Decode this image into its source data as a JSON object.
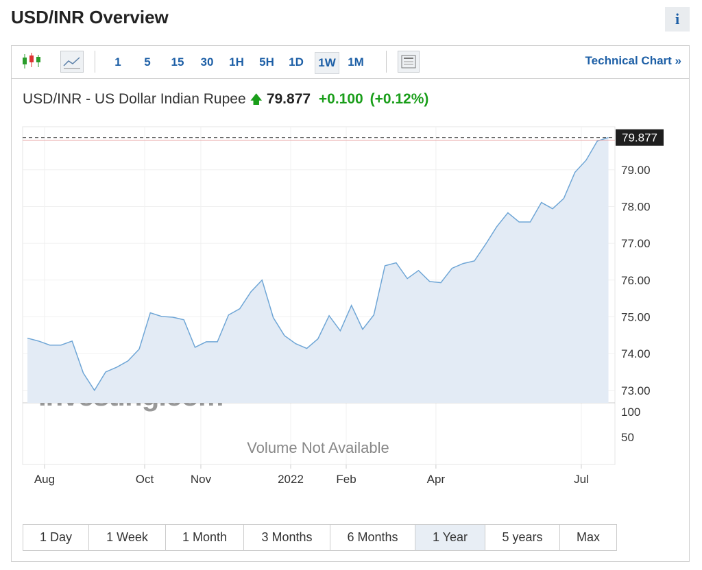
{
  "header": {
    "title": "USD/INR Overview",
    "info": "i"
  },
  "toolbar": {
    "intervals": [
      "1",
      "5",
      "15",
      "30",
      "1H",
      "5H",
      "1D",
      "1W",
      "1M"
    ],
    "active_interval": "1W",
    "technical_chart": "Technical Chart »"
  },
  "quote": {
    "name": "USD/INR - US Dollar Indian Rupee",
    "price": "79.877",
    "change": "+0.100",
    "change_percent": "(+0.12%)"
  },
  "chart_data": {
    "type": "area",
    "color": "#6fa6d6",
    "fill": "#e3ebf5",
    "grid": true,
    "values": [
      74.42,
      74.34,
      74.23,
      74.23,
      74.34,
      73.47,
      73.0,
      73.5,
      73.63,
      73.8,
      74.12,
      75.11,
      75.01,
      74.99,
      74.92,
      74.17,
      74.32,
      74.32,
      75.05,
      75.22,
      75.68,
      76.0,
      74.98,
      74.49,
      74.27,
      74.14,
      74.4,
      75.03,
      74.62,
      75.31,
      74.66,
      75.05,
      76.39,
      76.47,
      76.04,
      76.26,
      75.96,
      75.93,
      76.32,
      76.45,
      76.52,
      76.97,
      77.45,
      77.83,
      77.58,
      77.58,
      78.11,
      77.94,
      78.22,
      78.93,
      79.26,
      79.78,
      79.877
    ],
    "xlim": [
      -0.43,
      52.58
    ],
    "xticks": [
      {
        "value": 1.53,
        "label": "Aug"
      },
      {
        "value": 10.49,
        "label": "Oct"
      },
      {
        "value": 15.52,
        "label": "Nov"
      },
      {
        "value": 23.56,
        "label": "2022"
      },
      {
        "value": 28.53,
        "label": "Feb"
      },
      {
        "value": 36.56,
        "label": "Apr"
      },
      {
        "value": 49.57,
        "label": "Jul"
      }
    ],
    "ylim": [
      72.66,
      80.17
    ],
    "yticks": [
      {
        "value": 73,
        "label": "73.00"
      },
      {
        "value": 74,
        "label": "74.00"
      },
      {
        "value": 75,
        "label": "75.00"
      },
      {
        "value": 76,
        "label": "76.00"
      },
      {
        "value": 77,
        "label": "77.00"
      },
      {
        "value": 78,
        "label": "78.00"
      },
      {
        "value": 79,
        "label": "79.00"
      }
    ],
    "volume": {
      "ylim": [
        0,
        117.6
      ],
      "yticks": [
        50,
        100
      ],
      "message": "Volume Not Available"
    },
    "watermark": "Investing.com"
  },
  "ranges": {
    "options": [
      "1 Day",
      "1 Week",
      "1 Month",
      "3 Months",
      "6 Months",
      "1 Year",
      "5 years",
      "Max"
    ],
    "active": "1 Year"
  }
}
